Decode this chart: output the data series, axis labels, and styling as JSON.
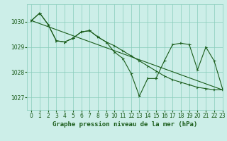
{
  "bg_color": "#cceee8",
  "grid_color": "#88ccbb",
  "line_color": "#1a5c1a",
  "title": "Graphe pression niveau de la mer (hPa)",
  "xlim": [
    -0.5,
    23
  ],
  "ylim": [
    1026.5,
    1030.7
  ],
  "yticks": [
    1027,
    1028,
    1029,
    1030
  ],
  "xticks": [
    0,
    1,
    2,
    3,
    4,
    5,
    6,
    7,
    8,
    9,
    10,
    11,
    12,
    13,
    14,
    15,
    16,
    17,
    18,
    19,
    20,
    21,
    22,
    23
  ],
  "series_diagonal": {
    "x": [
      0,
      23
    ],
    "y": [
      1030.05,
      1027.3
    ]
  },
  "series_upper": {
    "x": [
      0,
      1,
      2,
      3,
      4,
      5,
      6,
      7,
      8,
      9,
      10,
      11,
      12,
      13,
      14,
      15,
      16,
      17,
      18,
      19,
      20,
      21,
      22,
      23
    ],
    "y": [
      1030.05,
      1030.35,
      1029.9,
      1029.25,
      1029.2,
      1029.35,
      1029.6,
      1029.65,
      1029.4,
      1029.2,
      1029.05,
      1028.85,
      1028.65,
      1028.45,
      1028.25,
      1028.05,
      1027.85,
      1027.7,
      1027.6,
      1027.5,
      1027.4,
      1027.35,
      1027.3,
      1027.3
    ]
  },
  "series_lower": {
    "x": [
      0,
      1,
      2,
      3,
      4,
      5,
      6,
      7,
      8,
      9,
      10,
      11,
      12,
      13,
      14,
      15,
      16,
      17,
      18,
      19,
      20,
      21,
      22,
      23
    ],
    "y": [
      1030.05,
      1030.35,
      1029.9,
      1029.25,
      1029.2,
      1029.35,
      1029.6,
      1029.65,
      1029.4,
      1029.2,
      1028.8,
      1028.55,
      1027.95,
      1027.05,
      1027.75,
      1027.75,
      1028.45,
      1029.1,
      1029.15,
      1029.1,
      1028.1,
      1029.0,
      1028.45,
      1027.35
    ]
  }
}
